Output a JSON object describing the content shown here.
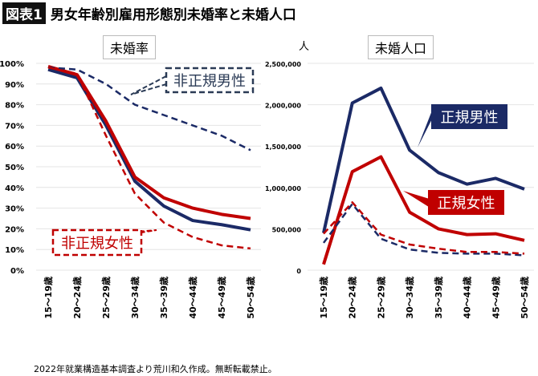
{
  "header": {
    "tag": "図表1",
    "title": "男女年齢別雇用形態別未婚率と未婚人口"
  },
  "footer": "2022年就業構造基本調査より荒川和久作成。無断転載禁止。",
  "colors": {
    "male": "#1b2a66",
    "female": "#c00000"
  },
  "chart_data": [
    {
      "type": "line",
      "title": "未婚率",
      "ylim": [
        0,
        100
      ],
      "yticks": [
        "0%",
        "10%",
        "20%",
        "30%",
        "40%",
        "50%",
        "60%",
        "70%",
        "80%",
        "90%",
        "100%"
      ],
      "categories": [
        "15～19歳",
        "20～24歳",
        "25～29歳",
        "30～34歳",
        "35～39歳",
        "40～44歳",
        "45～49歳",
        "50～54歳"
      ],
      "series": [
        {
          "name": "正規男性",
          "style": "solid",
          "color": "male",
          "values": [
            97,
            93,
            70,
            43,
            31,
            24,
            22,
            19.5
          ]
        },
        {
          "name": "正規女性",
          "style": "solid",
          "color": "female",
          "values": [
            98.5,
            94.5,
            72,
            45,
            35,
            30,
            27,
            25
          ]
        },
        {
          "name": "非正規男性",
          "style": "dashed",
          "color": "male",
          "values": [
            98,
            97,
            90,
            80,
            75,
            70,
            65,
            58
          ]
        },
        {
          "name": "非正規女性",
          "style": "dashed",
          "color": "female",
          "values": [
            98,
            95,
            65,
            37,
            23,
            16,
            12,
            10.5
          ]
        }
      ],
      "annotations": [
        "非正規男性",
        "非正規女性"
      ]
    },
    {
      "type": "line",
      "title": "未婚人口",
      "unit": "人",
      "ylim": [
        0,
        2500000
      ],
      "yticks": [
        "0",
        "500,000",
        "1,000,000",
        "1,500,000",
        "2,000,000",
        "2,500,000"
      ],
      "categories": [
        "15～19歳",
        "20～24歳",
        "25～29歳",
        "30～34歳",
        "35～39歳",
        "40～44歳",
        "45～49歳",
        "50～54歳"
      ],
      "series": [
        {
          "name": "正規男性",
          "style": "solid",
          "color": "male",
          "values": [
            450000,
            2020000,
            2200000,
            1450000,
            1180000,
            1040000,
            1110000,
            980000
          ]
        },
        {
          "name": "正規女性",
          "style": "solid",
          "color": "female",
          "values": [
            70000,
            1190000,
            1370000,
            700000,
            500000,
            430000,
            440000,
            360000
          ]
        },
        {
          "name": "非正規男性",
          "style": "dashed",
          "color": "male",
          "values": [
            330000,
            800000,
            380000,
            250000,
            210000,
            200000,
            200000,
            180000
          ]
        },
        {
          "name": "非正規女性",
          "style": "dashed",
          "color": "female",
          "values": [
            440000,
            820000,
            430000,
            310000,
            260000,
            220000,
            220000,
            200000
          ]
        }
      ],
      "annotations": [
        "正規男性",
        "正規女性"
      ]
    }
  ]
}
